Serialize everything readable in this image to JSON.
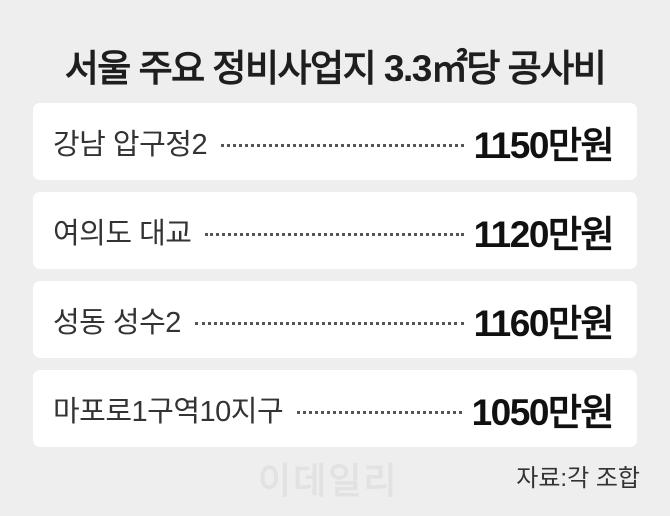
{
  "title": "서울 주요 정비사업지 3.3㎡당 공사비",
  "rows": [
    {
      "label": "강남 압구정2",
      "value": "1150만원"
    },
    {
      "label": "여의도 대교",
      "value": "1120만원"
    },
    {
      "label": "성동 성수2",
      "value": "1160만원"
    },
    {
      "label": "마포로1구역10지구",
      "value": "1050만원"
    }
  ],
  "watermark": "이데일리",
  "source": "자료:각 조합"
}
